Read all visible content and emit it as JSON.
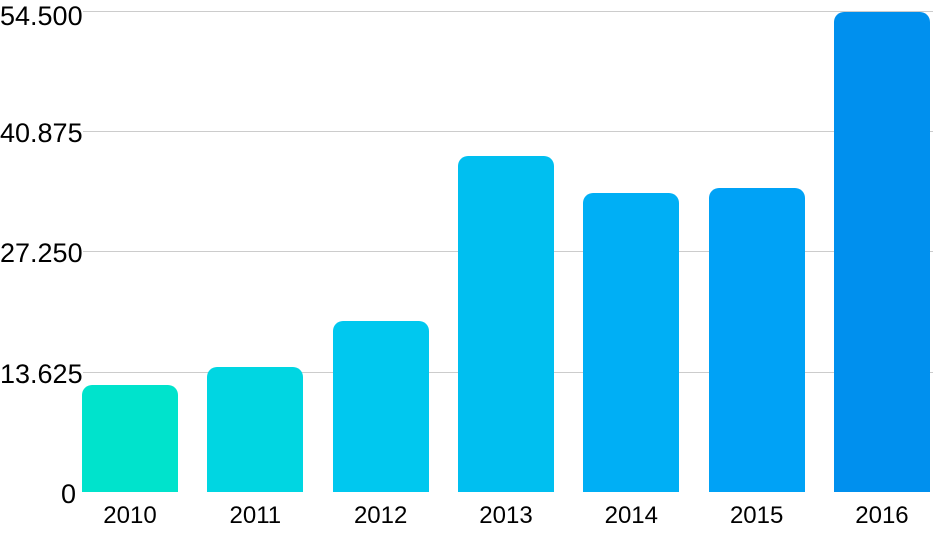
{
  "chart_data": {
    "type": "bar",
    "title": "",
    "xlabel": "",
    "ylabel": "",
    "categories": [
      "2010",
      "2011",
      "2012",
      "2013",
      "2014",
      "2015",
      "2016"
    ],
    "values": [
      12.1,
      14.2,
      19.4,
      38.0,
      33.8,
      34.4,
      54.3
    ],
    "series": [
      {
        "name": "values",
        "values": [
          12.1,
          14.2,
          19.4,
          38.0,
          33.8,
          34.4,
          54.3
        ]
      }
    ],
    "bar_colors": [
      "#00E3CC",
      "#00D6E2",
      "#00C8EF",
      "#00BFF0",
      "#00AFF5",
      "#00A2F6",
      "#0090EE"
    ],
    "ylim": [
      0,
      54.5
    ],
    "y_ticks": [
      {
        "value": 0,
        "label": "0"
      },
      {
        "value": 13.625,
        "label": "13.625"
      },
      {
        "value": 27.25,
        "label": "27.250"
      },
      {
        "value": 40.875,
        "label": "40.875"
      },
      {
        "value": 54.5,
        "label": "54.500"
      }
    ],
    "grid": true,
    "legend": "none",
    "colors": {
      "gridline": "#cccccc",
      "text": "#000000",
      "background": "#ffffff"
    }
  }
}
